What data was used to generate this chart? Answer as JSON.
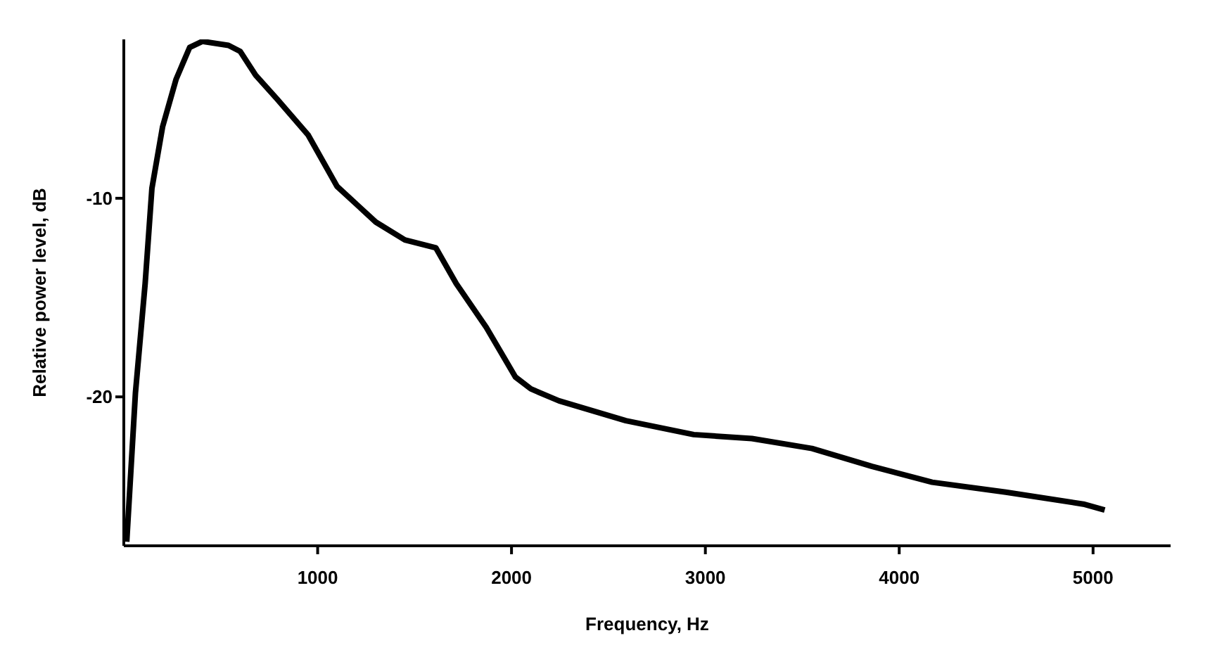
{
  "chart_data": {
    "type": "line",
    "xlabel": "Frequency, Hz",
    "ylabel": "Relative power level, dB",
    "x": [
      15,
      60,
      110,
      145,
      200,
      270,
      340,
      405,
      540,
      600,
      680,
      790,
      950,
      1100,
      1300,
      1450,
      1610,
      1715,
      1870,
      2020,
      2100,
      2245,
      2590,
      2940,
      3240,
      3550,
      3860,
      4170,
      4550,
      4950,
      5060
    ],
    "series": [
      {
        "color": "#000000",
        "values": [
          -27.3,
          -19.8,
          -14.3,
          -9.5,
          -6.4,
          -4.0,
          -2.4,
          -2.1,
          -2.3,
          -2.6,
          -3.8,
          -5.0,
          -6.8,
          -9.4,
          -11.2,
          -12.1,
          -12.5,
          -14.3,
          -16.5,
          -19.0,
          -19.6,
          -20.2,
          -21.2,
          -21.9,
          -22.1,
          -22.6,
          -23.5,
          -24.3,
          -24.8,
          -25.4,
          -25.7
        ]
      }
    ],
    "xlim": [
      0,
      5400
    ],
    "xticks": [
      1000,
      2000,
      3000,
      4000,
      5000
    ],
    "ylim": [
      -27.5,
      -2
    ],
    "yticks": [
      -10,
      -20
    ],
    "grid": false,
    "marker": "none",
    "line_style": "solid"
  }
}
